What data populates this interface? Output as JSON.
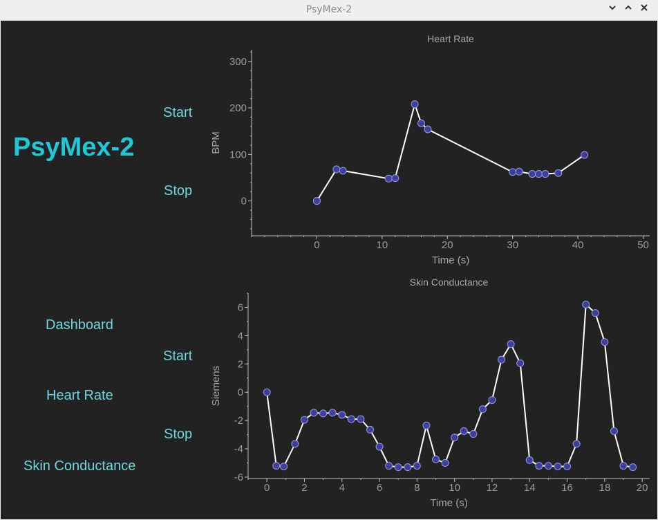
{
  "window": {
    "title": "PsyMex-2"
  },
  "app": {
    "title": "PsyMex-2"
  },
  "controls": {
    "heart_start": "Start",
    "heart_stop": "Stop",
    "skin_start": "Start",
    "skin_stop": "Stop"
  },
  "nav": {
    "dashboard": "Dashboard",
    "heart_rate": "Heart Rate",
    "skin_conductance": "Skin Conductance"
  },
  "colors": {
    "accent": "#1ec8d6",
    "link": "#6ed7dd",
    "background": "#222222",
    "marker": "#3d3fa0",
    "line": "#ffffff"
  },
  "chart_data": [
    {
      "type": "line",
      "title": "Heart Rate",
      "xlabel": "Time (s)",
      "ylabel": "BPM",
      "xlim": [
        -10,
        51
      ],
      "ylim": [
        -75,
        325
      ],
      "xticks": [
        0,
        10,
        20,
        30,
        40,
        50
      ],
      "yticks": [
        0,
        100,
        200,
        300
      ],
      "x": [
        0,
        3,
        4,
        11,
        12,
        15,
        16,
        17,
        30,
        31,
        33,
        34,
        35,
        37,
        41
      ],
      "y": [
        0,
        68,
        65,
        48,
        49,
        208,
        167,
        154,
        62,
        63,
        58,
        58,
        58,
        60,
        99
      ]
    },
    {
      "type": "line",
      "title": "Skin Conductance",
      "xlabel": "Time (s)",
      "ylabel": "Siemens",
      "xlim": [
        -1,
        20.4
      ],
      "ylim": [
        -6.1,
        7.0
      ],
      "xticks": [
        0,
        2,
        4,
        6,
        8,
        10,
        12,
        14,
        16,
        18,
        20
      ],
      "yticks": [
        -6,
        -4,
        -2,
        0,
        2,
        4,
        6
      ],
      "x": [
        0,
        0.5,
        0.9,
        1.5,
        2.0,
        2.5,
        3.0,
        3.5,
        4.0,
        4.5,
        5.0,
        5.5,
        6.0,
        6.5,
        7.0,
        7.5,
        8.0,
        8.5,
        9.0,
        9.5,
        10.0,
        10.5,
        11.0,
        11.5,
        12.0,
        12.5,
        13.0,
        13.5,
        14.0,
        14.5,
        15.0,
        15.5,
        16.0,
        16.5,
        17.0,
        17.5,
        18.0,
        18.5,
        19.0,
        19.5
      ],
      "y": [
        0,
        -5.2,
        -5.25,
        -3.65,
        -1.95,
        -1.45,
        -1.5,
        -1.45,
        -1.6,
        -1.9,
        -1.9,
        -2.65,
        -3.85,
        -5.2,
        -5.3,
        -5.3,
        -5.2,
        -2.35,
        -4.75,
        -5.0,
        -3.2,
        -2.75,
        -2.95,
        -1.2,
        -0.55,
        2.3,
        3.4,
        2.05,
        -4.8,
        -5.2,
        -5.2,
        -5.25,
        -5.25,
        -3.65,
        6.2,
        5.6,
        3.55,
        -2.75,
        -5.2,
        -5.3
      ]
    }
  ]
}
